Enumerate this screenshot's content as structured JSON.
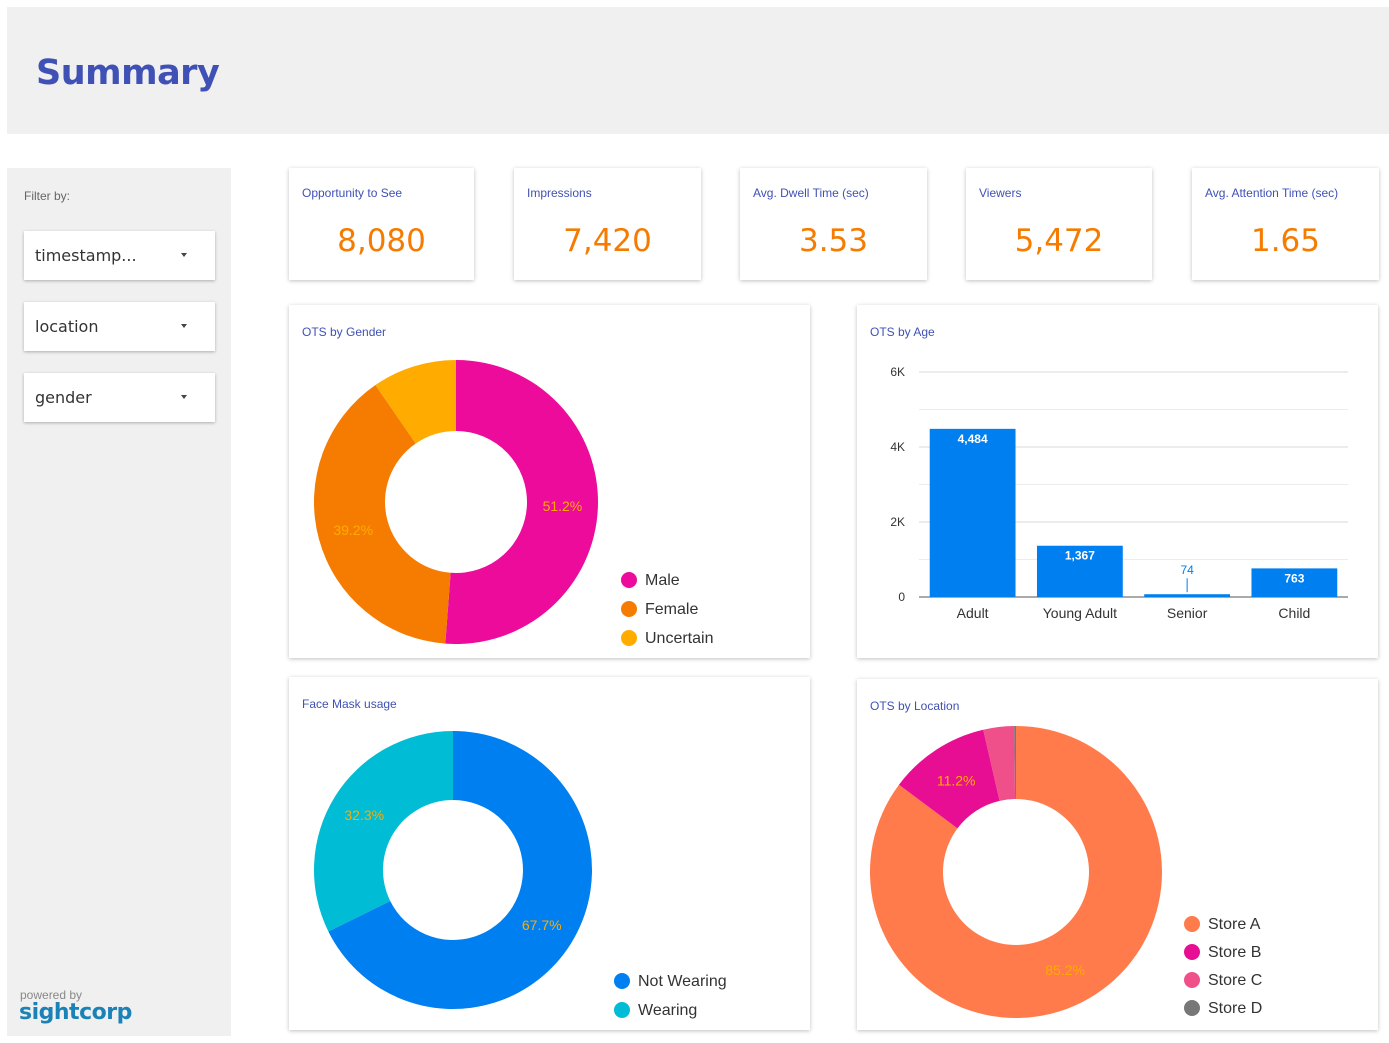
{
  "header": {
    "title": "Summary"
  },
  "sidebar": {
    "filter_label": "Filter by:",
    "filters": [
      {
        "value": "timestamp..."
      },
      {
        "value": "location"
      },
      {
        "value": "gender"
      }
    ],
    "powered_by": "powered by",
    "brand": "sightcorp"
  },
  "kpis": [
    {
      "label": "Opportunity to See",
      "value": "8,080"
    },
    {
      "label": "Impressions",
      "value": "7,420"
    },
    {
      "label": "Avg. Dwell Time (sec)",
      "value": "3.53"
    },
    {
      "label": "Viewers",
      "value": "5,472"
    },
    {
      "label": "Avg. Attention Time (sec)",
      "value": "1.65"
    }
  ],
  "colors": {
    "title_blue": "#3f51b5",
    "kpi_orange": "#f57c00",
    "male": "#ec0b9b",
    "female": "#f57c00",
    "uncertain": "#ffab00",
    "bar": "#007ff0",
    "not_wearing": "#007ff0",
    "wearing": "#00bcd4",
    "store_a": "#ff7b4b",
    "store_b": "#e70e93",
    "store_c": "#f0508a",
    "store_d": "#777777"
  },
  "chart_data": [
    {
      "type": "pie",
      "title": "OTS by Gender",
      "labels": [
        "Male",
        "Female",
        "Uncertain"
      ],
      "values": [
        51.2,
        39.2,
        9.6
      ],
      "value_labels": [
        "51.2%",
        "39.2%",
        ""
      ],
      "legend_position": "bottom-right"
    },
    {
      "type": "bar",
      "title": "OTS by Age",
      "categories": [
        "Adult",
        "Young Adult",
        "Senior",
        "Child"
      ],
      "values": [
        4484,
        1367,
        74,
        763
      ],
      "value_labels": [
        "4,484",
        "1,367",
        "74",
        "763"
      ],
      "ylim": [
        0,
        6000
      ],
      "yticks": [
        0,
        2000,
        4000,
        6000
      ],
      "ytick_labels": [
        "0",
        "2K",
        "4K",
        "6K"
      ],
      "grid": true
    },
    {
      "type": "pie",
      "title": "Face Mask usage",
      "labels": [
        "Not Wearing",
        "Wearing"
      ],
      "values": [
        67.7,
        32.3
      ],
      "value_labels": [
        "67.7%",
        "32.3%"
      ],
      "legend_position": "bottom-right"
    },
    {
      "type": "pie",
      "title": "OTS by Location",
      "labels": [
        "Store A",
        "Store B",
        "Store C",
        "Store D"
      ],
      "values": [
        85.2,
        11.2,
        3.4,
        0.2
      ],
      "value_labels": [
        "85.2%",
        "11.2%",
        "",
        ""
      ],
      "legend_position": "bottom-right"
    }
  ]
}
